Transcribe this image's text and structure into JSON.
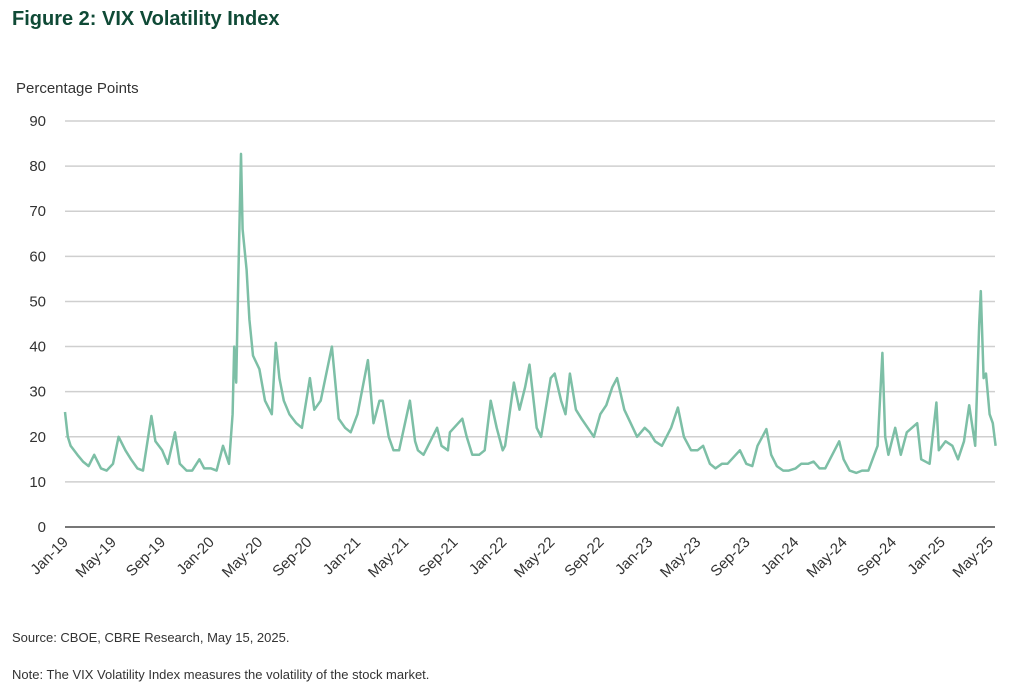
{
  "chart_data": {
    "type": "line",
    "title": "Figure 2: VIX Volatility Index",
    "ylabel": "Percentage Points",
    "xlabel": "",
    "ylim": [
      0,
      90
    ],
    "yticks": [
      0,
      10,
      20,
      30,
      40,
      50,
      60,
      70,
      80,
      90
    ],
    "xticks": [
      "Jan-19",
      "May-19",
      "Sep-19",
      "Jan-20",
      "May-20",
      "Sep-20",
      "Jan-21",
      "May-21",
      "Sep-21",
      "Jan-22",
      "May-22",
      "Sep-22",
      "Jan-23",
      "May-23",
      "Sep-23",
      "Jan-24",
      "May-24",
      "Sep-24",
      "Jan-25",
      "May-25"
    ],
    "grid": true,
    "legend": "none",
    "color": "#7dbfa6",
    "points": [
      [
        "2019-01-01",
        25.5
      ],
      [
        "2019-01-08",
        20
      ],
      [
        "2019-01-15",
        18
      ],
      [
        "2019-02-01",
        16
      ],
      [
        "2019-02-15",
        14.5
      ],
      [
        "2019-03-01",
        13.5
      ],
      [
        "2019-03-15",
        16
      ],
      [
        "2019-04-01",
        13
      ],
      [
        "2019-04-15",
        12.5
      ],
      [
        "2019-05-01",
        14
      ],
      [
        "2019-05-15",
        20
      ],
      [
        "2019-06-01",
        17
      ],
      [
        "2019-06-15",
        15
      ],
      [
        "2019-07-01",
        13
      ],
      [
        "2019-07-15",
        12.5
      ],
      [
        "2019-08-05",
        24.6
      ],
      [
        "2019-08-15",
        19
      ],
      [
        "2019-09-01",
        17
      ],
      [
        "2019-09-15",
        14
      ],
      [
        "2019-10-03",
        21
      ],
      [
        "2019-10-15",
        14
      ],
      [
        "2019-11-01",
        12.5
      ],
      [
        "2019-11-15",
        12.5
      ],
      [
        "2019-12-03",
        15
      ],
      [
        "2019-12-15",
        13
      ],
      [
        "2020-01-01",
        13
      ],
      [
        "2020-01-15",
        12.5
      ],
      [
        "2020-01-31",
        18
      ],
      [
        "2020-02-15",
        14
      ],
      [
        "2020-02-24",
        25
      ],
      [
        "2020-02-28",
        40
      ],
      [
        "2020-03-04",
        32
      ],
      [
        "2020-03-09",
        54
      ],
      [
        "2020-03-16",
        82.7
      ],
      [
        "2020-03-20",
        66
      ],
      [
        "2020-03-30",
        57
      ],
      [
        "2020-04-06",
        46
      ],
      [
        "2020-04-15",
        38
      ],
      [
        "2020-05-01",
        35
      ],
      [
        "2020-05-15",
        28
      ],
      [
        "2020-06-01",
        25
      ],
      [
        "2020-06-11",
        40.8
      ],
      [
        "2020-06-20",
        33
      ],
      [
        "2020-07-01",
        28
      ],
      [
        "2020-07-15",
        25
      ],
      [
        "2020-08-01",
        23
      ],
      [
        "2020-08-15",
        22
      ],
      [
        "2020-09-04",
        33
      ],
      [
        "2020-09-15",
        26
      ],
      [
        "2020-10-01",
        28
      ],
      [
        "2020-10-29",
        40
      ],
      [
        "2020-11-15",
        24
      ],
      [
        "2020-12-01",
        22
      ],
      [
        "2020-12-15",
        21
      ],
      [
        "2021-01-01",
        25
      ],
      [
        "2021-01-27",
        37
      ],
      [
        "2021-02-10",
        23
      ],
      [
        "2021-02-25",
        28
      ],
      [
        "2021-03-05",
        28
      ],
      [
        "2021-03-20",
        20
      ],
      [
        "2021-04-01",
        17
      ],
      [
        "2021-04-15",
        17
      ],
      [
        "2021-05-12",
        28
      ],
      [
        "2021-05-25",
        19
      ],
      [
        "2021-06-01",
        17
      ],
      [
        "2021-06-15",
        16
      ],
      [
        "2021-07-19",
        22
      ],
      [
        "2021-07-30",
        18
      ],
      [
        "2021-08-15",
        17
      ],
      [
        "2021-08-20",
        21
      ],
      [
        "2021-09-20",
        24
      ],
      [
        "2021-10-01",
        20
      ],
      [
        "2021-10-15",
        16
      ],
      [
        "2021-11-01",
        16
      ],
      [
        "2021-11-15",
        17
      ],
      [
        "2021-11-30",
        28
      ],
      [
        "2021-12-15",
        22
      ],
      [
        "2021-12-30",
        17
      ],
      [
        "2022-01-05",
        18
      ],
      [
        "2022-01-27",
        32
      ],
      [
        "2022-02-10",
        26
      ],
      [
        "2022-02-24",
        31
      ],
      [
        "2022-03-07",
        36
      ],
      [
        "2022-03-25",
        22
      ],
      [
        "2022-04-05",
        20
      ],
      [
        "2022-04-29",
        33
      ],
      [
        "2022-05-09",
        34
      ],
      [
        "2022-05-25",
        28
      ],
      [
        "2022-06-05",
        25
      ],
      [
        "2022-06-16",
        34
      ],
      [
        "2022-07-01",
        26
      ],
      [
        "2022-07-15",
        24
      ],
      [
        "2022-08-15",
        20
      ],
      [
        "2022-08-31",
        25
      ],
      [
        "2022-09-15",
        27
      ],
      [
        "2022-09-30",
        31
      ],
      [
        "2022-10-12",
        33
      ],
      [
        "2022-10-30",
        26
      ],
      [
        "2022-11-15",
        23
      ],
      [
        "2022-12-01",
        20
      ],
      [
        "2022-12-20",
        22
      ],
      [
        "2023-01-01",
        21
      ],
      [
        "2023-01-15",
        19
      ],
      [
        "2023-02-01",
        18
      ],
      [
        "2023-02-24",
        22
      ],
      [
        "2023-03-13",
        26.5
      ],
      [
        "2023-03-28",
        20
      ],
      [
        "2023-04-15",
        17
      ],
      [
        "2023-05-01",
        17
      ],
      [
        "2023-05-15",
        18
      ],
      [
        "2023-06-01",
        14
      ],
      [
        "2023-06-15",
        13
      ],
      [
        "2023-07-01",
        14
      ],
      [
        "2023-07-15",
        14
      ],
      [
        "2023-08-15",
        17
      ],
      [
        "2023-08-31",
        14
      ],
      [
        "2023-09-15",
        13.5
      ],
      [
        "2023-09-28",
        18
      ],
      [
        "2023-10-20",
        21.7
      ],
      [
        "2023-11-01",
        16
      ],
      [
        "2023-11-15",
        13.5
      ],
      [
        "2023-12-01",
        12.5
      ],
      [
        "2023-12-15",
        12.5
      ],
      [
        "2024-01-01",
        13
      ],
      [
        "2024-01-15",
        14
      ],
      [
        "2024-02-01",
        14
      ],
      [
        "2024-02-15",
        14.5
      ],
      [
        "2024-03-01",
        13
      ],
      [
        "2024-03-15",
        13
      ],
      [
        "2024-04-19",
        19
      ],
      [
        "2024-04-30",
        15
      ],
      [
        "2024-05-15",
        12.5
      ],
      [
        "2024-06-01",
        12
      ],
      [
        "2024-06-15",
        12.5
      ],
      [
        "2024-07-01",
        12.5
      ],
      [
        "2024-07-24",
        18
      ],
      [
        "2024-08-05",
        38.6
      ],
      [
        "2024-08-12",
        20
      ],
      [
        "2024-08-20",
        16
      ],
      [
        "2024-09-06",
        22
      ],
      [
        "2024-09-20",
        16
      ],
      [
        "2024-10-05",
        21
      ],
      [
        "2024-10-31",
        23
      ],
      [
        "2024-11-10",
        15
      ],
      [
        "2024-12-01",
        14
      ],
      [
        "2024-12-18",
        27.6
      ],
      [
        "2024-12-24",
        17
      ],
      [
        "2025-01-10",
        19
      ],
      [
        "2025-01-27",
        18
      ],
      [
        "2025-02-10",
        15
      ],
      [
        "2025-02-25",
        19
      ],
      [
        "2025-03-10",
        27
      ],
      [
        "2025-03-25",
        18
      ],
      [
        "2025-04-04",
        45
      ],
      [
        "2025-04-08",
        52.3
      ],
      [
        "2025-04-15",
        33
      ],
      [
        "2025-04-21",
        34
      ],
      [
        "2025-04-30",
        25
      ],
      [
        "2025-05-08",
        23
      ],
      [
        "2025-05-15",
        18
      ]
    ]
  },
  "footer": {
    "source": "Source: CBOE, CBRE Research, May 15, 2025.",
    "note": "Note: The VIX Volatility Index measures the volatility of the stock market."
  }
}
